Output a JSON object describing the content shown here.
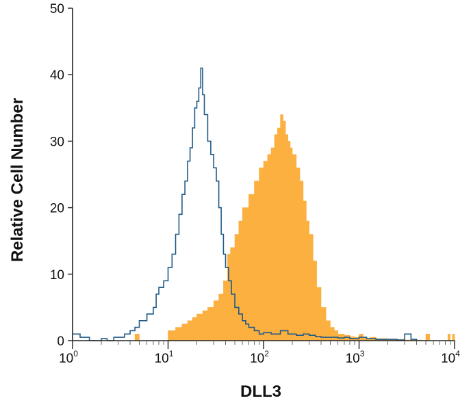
{
  "chart_data": {
    "type": "histogram",
    "title": "",
    "xlabel": "DLL3",
    "ylabel": "Relative Cell Number",
    "x_scale": "log",
    "xlim": [
      1,
      10000
    ],
    "ylim": [
      0,
      50
    ],
    "x_ticks": [
      {
        "value": 1,
        "base": "10",
        "exp": "0"
      },
      {
        "value": 10,
        "base": "10",
        "exp": "1"
      },
      {
        "value": 100,
        "base": "10",
        "exp": "2"
      },
      {
        "value": 1000,
        "base": "10",
        "exp": "3"
      },
      {
        "value": 10000,
        "base": "10",
        "exp": "4"
      }
    ],
    "y_ticks": [
      0,
      10,
      20,
      30,
      40,
      50
    ],
    "grid": false,
    "legend": "none",
    "series": [
      {
        "style": "filled",
        "color": "#fbb040",
        "x": [
          1.0,
          4.0,
          4.5,
          5.0,
          6.0,
          8.0,
          10.0,
          12.0,
          14.0,
          16.0,
          18.0,
          20.0,
          23.0,
          26.0,
          30.0,
          34.0,
          38.0,
          42.0,
          45.0,
          50.0,
          55.0,
          60.0,
          70.0,
          80.0,
          90.0,
          100.0,
          110.0,
          120.0,
          130.0,
          140.0,
          150.0,
          160.0,
          170.0,
          180.0,
          190.0,
          200.0,
          220.0,
          240.0,
          260.0,
          280.0,
          300.0,
          330.0,
          360.0,
          400.0,
          450.0,
          500.0,
          550.0,
          600.0,
          700.0,
          800.0,
          900.0,
          1000.0,
          1100.0,
          1200.0,
          1300.0,
          1500.0,
          2000.0,
          3000.0,
          4500.0,
          5000.0,
          5500.0,
          8000.0,
          8500.0,
          9000.0,
          9500.0,
          10000.0,
          10500.0
        ],
        "y": [
          0,
          0,
          1,
          0,
          0,
          0,
          1.5,
          2,
          2.5,
          3,
          3.5,
          4,
          4.5,
          5,
          6,
          7,
          9,
          13,
          14,
          16,
          18,
          20,
          22,
          24,
          26,
          27,
          28,
          29,
          31,
          32,
          34,
          33,
          31,
          30,
          29,
          28,
          26,
          24,
          21,
          18,
          16,
          12,
          8,
          5,
          3,
          2,
          1.5,
          1,
          0.8,
          0.6,
          0.5,
          1,
          0.5,
          0.3,
          0.5,
          0.3,
          0.2,
          0.1,
          0,
          1,
          0,
          0,
          1,
          0,
          1,
          0,
          0
        ]
      },
      {
        "style": "outline",
        "color": "#1f5a87",
        "x": [
          1.0,
          1.2,
          1.5,
          1.8,
          2.0,
          2.3,
          2.7,
          3.0,
          3.5,
          4.0,
          4.5,
          5.0,
          6.0,
          7.0,
          7.5,
          8.0,
          9.0,
          10.0,
          11.0,
          12.0,
          13.0,
          14.0,
          15.0,
          16.0,
          17.0,
          18.0,
          19.0,
          20.0,
          21.0,
          22.0,
          23.0,
          24.0,
          26.0,
          28.0,
          30.0,
          32.0,
          34.0,
          36.0,
          38.0,
          40.0,
          43.0,
          46.0,
          50.0,
          55.0,
          60.0,
          65.0,
          70.0,
          80.0,
          90.0,
          100.0,
          120.0,
          150.0,
          180.0,
          220.0,
          260.0,
          300.0,
          350.0,
          400.0,
          500.0,
          600.0,
          700.0,
          800.0,
          1000.0,
          1200.0,
          1500.0,
          2000.0,
          2500.0,
          3000.0,
          3500.0,
          4000.0
        ],
        "y": [
          1,
          0.5,
          0,
          0,
          0.3,
          0,
          0.5,
          0.5,
          1,
          1.5,
          2,
          3,
          4,
          5,
          7,
          8,
          9,
          11,
          13,
          16,
          19,
          22,
          24,
          27,
          29,
          32,
          35,
          36,
          38,
          41,
          37,
          34,
          30,
          28,
          26,
          24,
          20,
          16,
          13,
          11,
          9,
          7,
          5,
          4,
          3,
          2.5,
          2,
          1.5,
          1,
          1.2,
          1,
          1.5,
          1,
          0.8,
          1,
          0.8,
          0.6,
          0.5,
          0.5,
          0.4,
          0.5,
          0.3,
          0.5,
          0.3,
          0.2,
          0.2,
          0.1,
          1,
          0.2,
          0
        ]
      }
    ]
  }
}
